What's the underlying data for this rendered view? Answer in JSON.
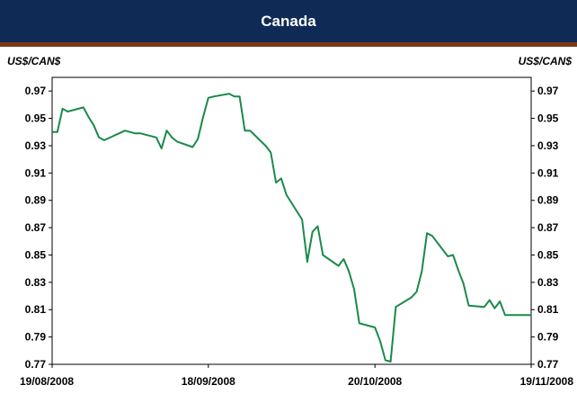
{
  "chart_data": {
    "type": "line",
    "title": "Canada",
    "ylabel_left": "US$/CAN$",
    "ylabel_right": "US$/CAN$",
    "ylim": [
      0.77,
      0.98
    ],
    "yticks": [
      0.97,
      0.95,
      0.93,
      0.91,
      0.89,
      0.87,
      0.85,
      0.83,
      0.81,
      0.79,
      0.77
    ],
    "ytick_labels": [
      "0.97",
      "0.95",
      "0.93",
      "0.91",
      "0.89",
      "0.87",
      "0.85",
      "0.83",
      "0.81",
      "0.79",
      "0.77"
    ],
    "xlim": [
      "2008-08-19",
      "2008-11-19"
    ],
    "xticks": [
      "2008-08-19",
      "2008-09-18",
      "2008-10-20",
      "2008-11-19"
    ],
    "xtick_labels": [
      "19/08/2008",
      "18/09/2008",
      "20/10/2008",
      "19/11/2008"
    ],
    "grid": false,
    "series": [
      {
        "color": "#1a8a4a",
        "x": [
          "2008-08-19",
          "2008-08-20",
          "2008-08-21",
          "2008-08-22",
          "2008-08-25",
          "2008-08-26",
          "2008-08-27",
          "2008-08-28",
          "2008-08-29",
          "2008-09-02",
          "2008-09-03",
          "2008-09-04",
          "2008-09-05",
          "2008-09-08",
          "2008-09-09",
          "2008-09-10",
          "2008-09-11",
          "2008-09-12",
          "2008-09-15",
          "2008-09-16",
          "2008-09-17",
          "2008-09-18",
          "2008-09-19",
          "2008-09-22",
          "2008-09-23",
          "2008-09-24",
          "2008-09-25",
          "2008-09-26",
          "2008-09-29",
          "2008-09-30",
          "2008-10-01",
          "2008-10-02",
          "2008-10-03",
          "2008-10-06",
          "2008-10-07",
          "2008-10-08",
          "2008-10-09",
          "2008-10-10",
          "2008-10-13",
          "2008-10-14",
          "2008-10-15",
          "2008-10-16",
          "2008-10-17",
          "2008-10-20",
          "2008-10-21",
          "2008-10-22",
          "2008-10-23",
          "2008-10-24",
          "2008-10-27",
          "2008-10-28",
          "2008-10-29",
          "2008-10-30",
          "2008-10-31",
          "2008-11-03",
          "2008-11-04",
          "2008-11-05",
          "2008-11-06",
          "2008-11-07",
          "2008-11-10",
          "2008-11-11",
          "2008-11-12",
          "2008-11-13",
          "2008-11-14",
          "2008-11-17",
          "2008-11-18",
          "2008-11-19"
        ],
        "y": [
          0.94,
          0.94,
          0.957,
          0.955,
          0.958,
          0.951,
          0.945,
          0.936,
          0.934,
          0.941,
          0.94,
          0.939,
          0.939,
          0.936,
          0.928,
          0.941,
          0.936,
          0.933,
          0.929,
          0.935,
          0.951,
          0.965,
          0.966,
          0.968,
          0.966,
          0.966,
          0.941,
          0.941,
          0.93,
          0.925,
          0.903,
          0.906,
          0.894,
          0.876,
          0.845,
          0.867,
          0.871,
          0.85,
          0.842,
          0.847,
          0.838,
          0.825,
          0.8,
          0.797,
          0.787,
          0.773,
          0.772,
          0.812,
          0.819,
          0.823,
          0.838,
          0.866,
          0.864,
          0.849,
          0.85,
          0.839,
          0.829,
          0.813,
          0.812,
          0.817,
          0.811,
          0.816,
          0.806,
          0.806,
          0.806,
          0.806
        ]
      }
    ]
  }
}
